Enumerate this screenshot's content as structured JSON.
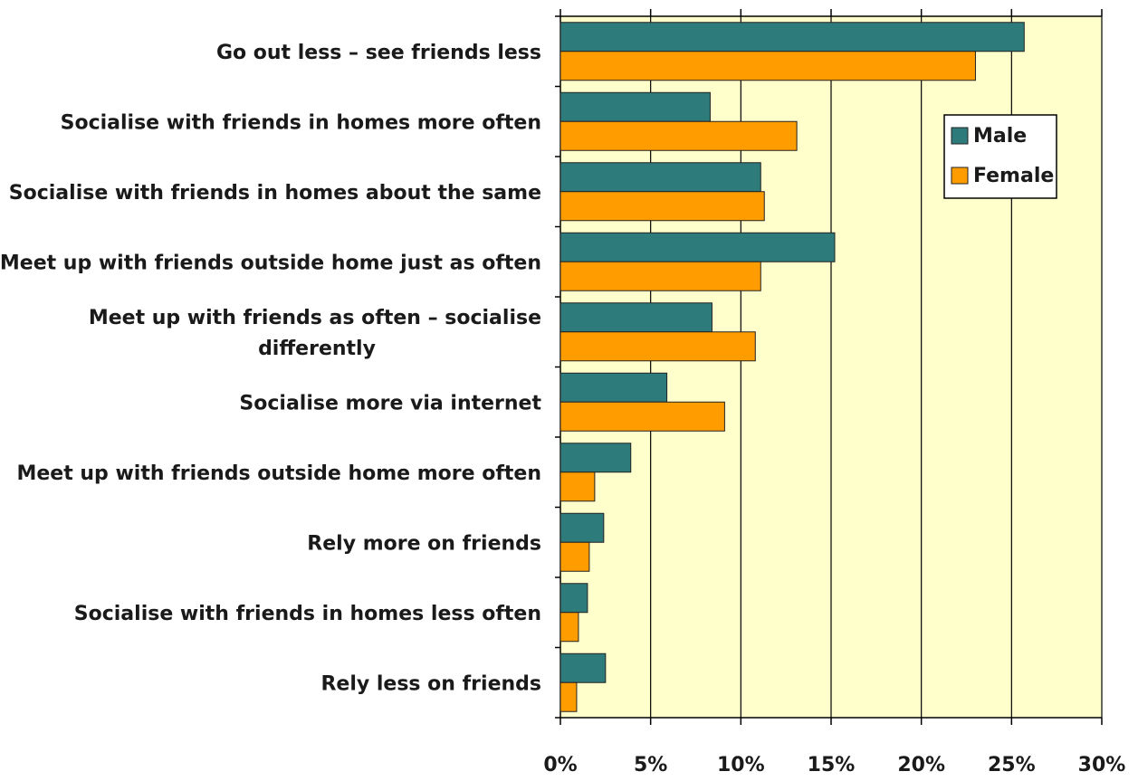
{
  "chart_data": {
    "type": "bar",
    "orientation": "horizontal",
    "title": "",
    "xlabel": "",
    "ylabel": "",
    "xlim": [
      0,
      30
    ],
    "x_ticks": [
      "0%",
      "5%",
      "10%",
      "15%",
      "20%",
      "25%",
      "30%"
    ],
    "grid": true,
    "legend_position": "top-right",
    "categories": [
      [
        "Go out less – see friends less"
      ],
      [
        "Socialise with friends in homes more often"
      ],
      [
        "Socialise with friends in homes about the same"
      ],
      [
        "Meet up with friends outside home just as often"
      ],
      [
        "Meet up with friends as often – socialise",
        "differently"
      ],
      [
        "Socialise more via internet"
      ],
      [
        "Meet up with friends outside home more often"
      ],
      [
        "Rely more on friends"
      ],
      [
        "Socialise with friends in homes less often"
      ],
      [
        "Rely less on friends"
      ]
    ],
    "series": [
      {
        "name": "Male",
        "color": "#2e7b7b",
        "values": [
          25.7,
          8.3,
          11.1,
          15.2,
          8.4,
          5.9,
          3.9,
          2.4,
          1.5,
          2.5
        ]
      },
      {
        "name": "Female",
        "color": "#ff9c00",
        "values": [
          23.0,
          13.1,
          11.3,
          11.1,
          10.8,
          9.1,
          1.9,
          1.6,
          1.0,
          0.9
        ]
      }
    ],
    "plot_background": "#ffffcc",
    "gridline_color": "#000000"
  }
}
